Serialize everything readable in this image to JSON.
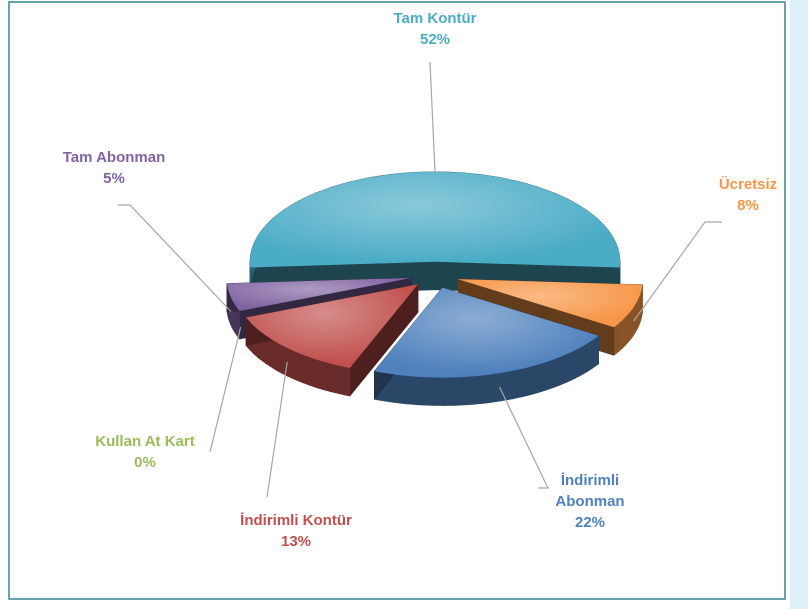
{
  "chart_data": {
    "type": "pie",
    "categories": [
      "Tam Kontür",
      "Ücretsiz",
      "İndirimli Abonman",
      "İndirimli Kontür",
      "Kullan At Kart",
      "Tam Abonman"
    ],
    "values": [
      52,
      8,
      22,
      13,
      0,
      5
    ],
    "value_labels": [
      "52%",
      "8%",
      "22%",
      "13%",
      "0%",
      "5%"
    ],
    "colors": [
      "#4bacc6",
      "#f79646",
      "#4f81bd",
      "#c0504d",
      "#9bbb59",
      "#8064a2"
    ]
  }
}
